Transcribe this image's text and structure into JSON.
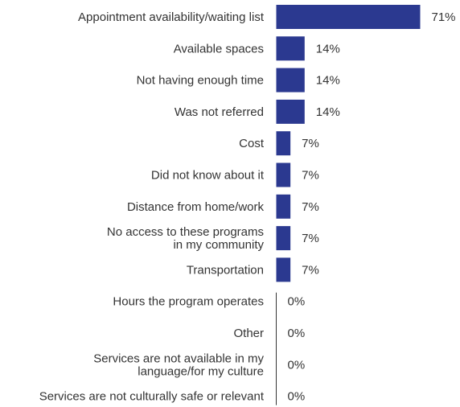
{
  "chart_data": {
    "type": "bar",
    "orientation": "horizontal",
    "bar_color": "#2b3990",
    "axis_color": "#333333",
    "grid": false,
    "xlim": [
      0,
      71
    ],
    "categories": [
      [
        "Appointment availability/waiting list"
      ],
      [
        "Available spaces"
      ],
      [
        "Not having enough time"
      ],
      [
        "Was not referred"
      ],
      [
        "Cost"
      ],
      [
        "Did not know about it"
      ],
      [
        "Distance from home/work"
      ],
      [
        "No access to these programs",
        "in my community"
      ],
      [
        "Transportation"
      ],
      [
        "Hours the program operates"
      ],
      [
        "Other"
      ],
      [
        "Services are not available in my",
        "language/for my culture"
      ],
      [
        "Services are not culturally safe or relevant"
      ]
    ],
    "values": [
      71,
      14,
      14,
      14,
      7,
      7,
      7,
      7,
      7,
      0,
      0,
      0,
      0
    ],
    "value_labels": [
      "71%",
      "14%",
      "14%",
      "14%",
      "7%",
      "7%",
      "7%",
      "7%",
      "7%",
      "0%",
      "0%",
      "0%",
      "0%"
    ]
  }
}
